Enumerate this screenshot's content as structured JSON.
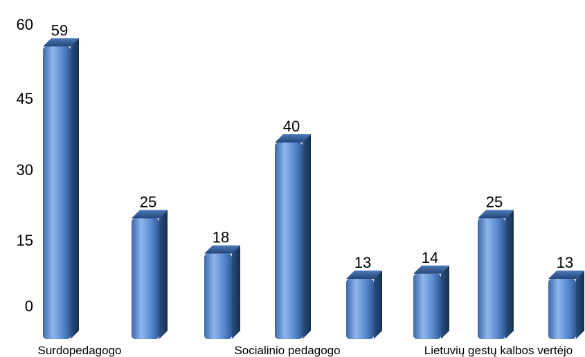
{
  "chart_data": {
    "type": "bar",
    "title": "",
    "xlabel": "",
    "ylabel": "",
    "ylim": [
      0,
      60
    ],
    "y_ticks": [
      0,
      15,
      30,
      45,
      60
    ],
    "grid": false,
    "legend": "none",
    "bar_color": "#4f81bd",
    "group_labels": [
      "Surdopedagogo",
      "Socialinio pedagogo",
      "Lietuvių gestų kalbos vertėjo"
    ],
    "values": [
      59,
      25,
      18,
      40,
      13,
      14,
      25,
      13
    ]
  }
}
